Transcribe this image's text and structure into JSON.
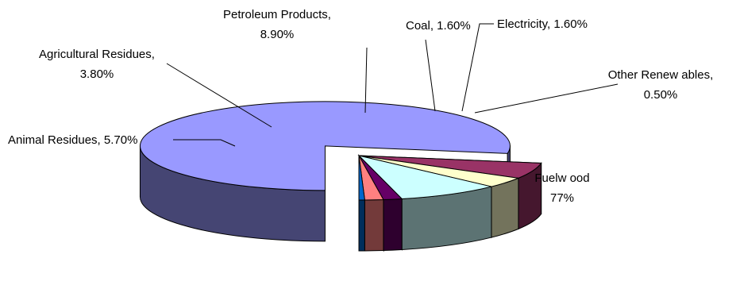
{
  "chart_data": {
    "type": "pie",
    "style": "3d-exploded",
    "series": [
      {
        "name": "Fuelwood",
        "label_lines": [
          "Fuelw ood",
          "77%"
        ],
        "value": 77,
        "color": "#9999ff",
        "exploded": true
      },
      {
        "name": "Animal Residues",
        "label_lines": [
          "Animal Residues, 5.70%"
        ],
        "value": 5.7,
        "color": "#993366"
      },
      {
        "name": "Agricultural Residues",
        "label_lines": [
          "Agricultural Residues,",
          "3.80%"
        ],
        "value": 3.8,
        "color": "#ffffcc"
      },
      {
        "name": "Petroleum Products",
        "label_lines": [
          "Petroleum Products,",
          "8.90%"
        ],
        "value": 8.9,
        "color": "#ccffff"
      },
      {
        "name": "Coal",
        "label_lines": [
          "Coal, 1.60%"
        ],
        "value": 1.6,
        "color": "#660066"
      },
      {
        "name": "Electricity",
        "label_lines": [
          "Electricity, 1.60%"
        ],
        "value": 1.6,
        "color": "#ff8080"
      },
      {
        "name": "Other Renewables",
        "label_lines": [
          "Other Renew ables,",
          "0.50%"
        ],
        "value": 0.5,
        "color": "#0066cc"
      }
    ]
  }
}
